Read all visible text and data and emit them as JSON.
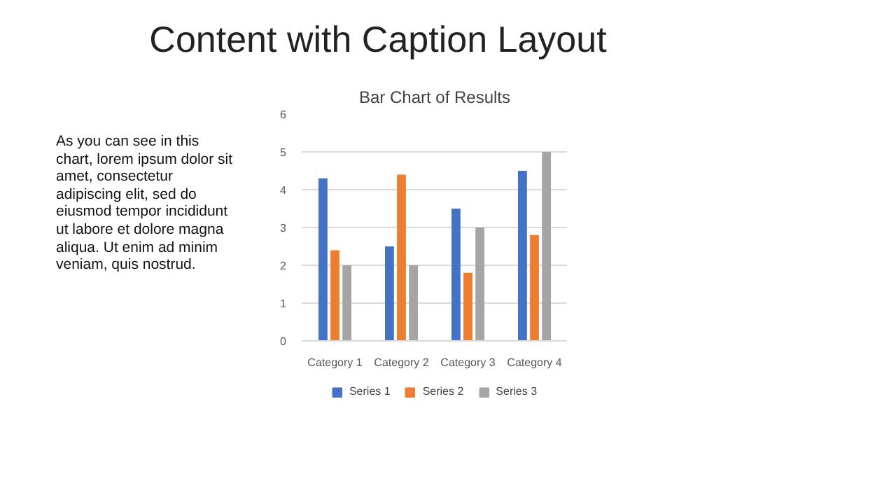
{
  "chart_data": {
    "type": "bar",
    "title": "Bar Chart of Results",
    "categories": [
      "Category 1",
      "Category 2",
      "Category 3",
      "Category 4"
    ],
    "series": [
      {
        "name": "Series 1",
        "color": "#4472c4",
        "values": [
          4.3,
          2.5,
          3.5,
          4.5
        ]
      },
      {
        "name": "Series 2",
        "color": "#ed7d31",
        "values": [
          2.4,
          4.4,
          1.8,
          2.8
        ]
      },
      {
        "name": "Series 3",
        "color": "#a5a5a5",
        "values": [
          2,
          2,
          3,
          5
        ]
      }
    ],
    "ylim": [
      0,
      6
    ],
    "yticks": [
      0,
      1,
      2,
      3,
      4,
      5,
      6
    ],
    "grid": "y",
    "legend": "bottom",
    "annotations": [
      "Content with Caption Layout",
      "As you can see in this chart, lorem ipsum dolor sit amet, consectetur adipiscing elit, sed do eiusmod tempor incididunt ut labore et dolore magna aliqua. Ut enim ad minim veniam, quis nostrud."
    ]
  }
}
